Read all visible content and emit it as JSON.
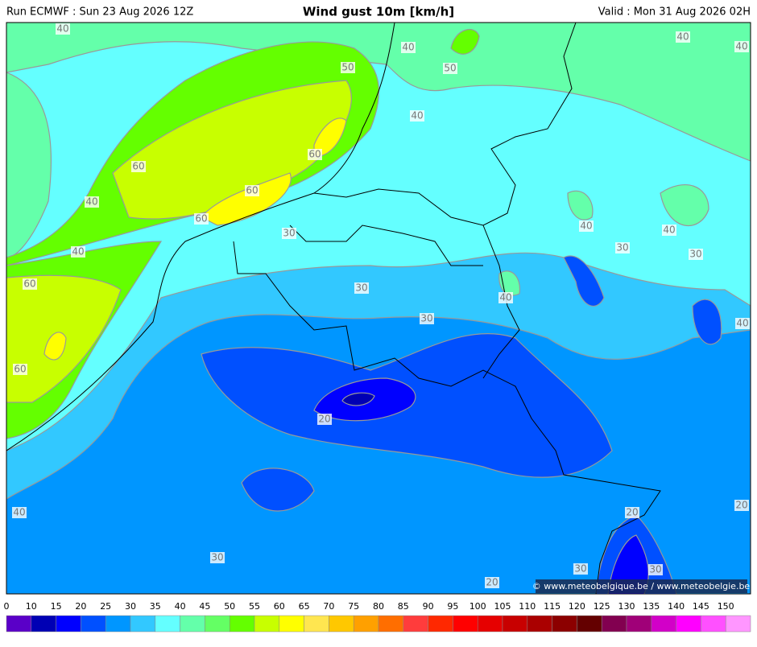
{
  "header": {
    "run": "Run ECMWF : Sun 23 Aug 2026 12Z",
    "title": "Wind gust 10m [km/h]",
    "valid": "Valid : Mon 31 Aug 2026 02H"
  },
  "map": {
    "contour_labels": [
      "40",
      "40",
      "50",
      "50",
      "40",
      "40",
      "40",
      "60",
      "60",
      "60",
      "40",
      "60",
      "40",
      "40",
      "30",
      "40",
      "30",
      "30",
      "60",
      "30",
      "40",
      "30",
      "40",
      "60",
      "20",
      "20",
      "20",
      "40",
      "30",
      "30",
      "30",
      "20"
    ],
    "copyright": "© www.meteobelgique.be / www.meteobelgie.be"
  },
  "colorbar": {
    "ticks": [
      0,
      10,
      15,
      20,
      25,
      30,
      35,
      40,
      45,
      50,
      55,
      60,
      65,
      70,
      75,
      80,
      85,
      90,
      95,
      100,
      105,
      110,
      115,
      120,
      125,
      130,
      135,
      140,
      145,
      150
    ],
    "colors": [
      "#5a00c8",
      "#0000b4",
      "#0000ff",
      "#0050ff",
      "#0096ff",
      "#32c8ff",
      "#64ffff",
      "#64ffaa",
      "#64ff64",
      "#64ff00",
      "#c8ff00",
      "#ffff00",
      "#ffe650",
      "#ffc800",
      "#ffa000",
      "#ff6e00",
      "#ff3c3c",
      "#ff2800",
      "#ff0000",
      "#e60000",
      "#c80000",
      "#aa0000",
      "#8c0000",
      "#640000",
      "#820050",
      "#a00078",
      "#d200c8",
      "#ff00ff",
      "#ff50ff",
      "#ff96ff"
    ]
  }
}
